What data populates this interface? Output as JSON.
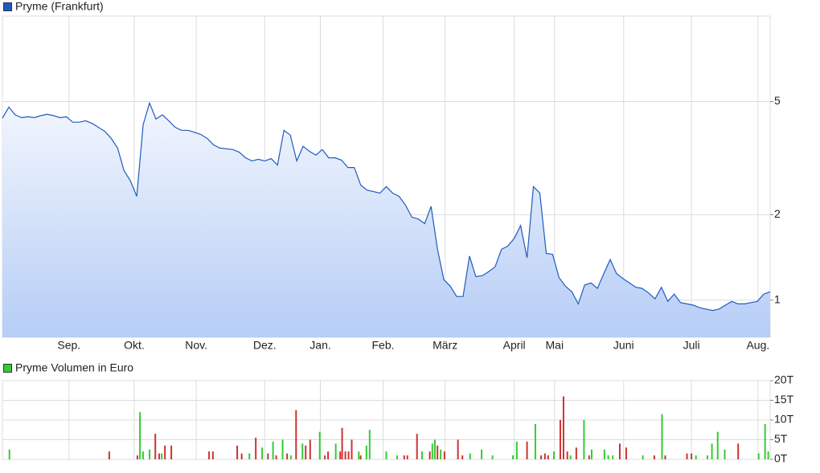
{
  "chart_data": [
    {
      "type": "line",
      "ylog": true,
      "grid": true,
      "series": [
        {
          "name": "Pryme (Frankfurt)",
          "color": "#1f5bbf",
          "values": [
            4.37,
            4.78,
            4.49,
            4.39,
            4.42,
            4.39,
            4.46,
            4.51,
            4.46,
            4.39,
            4.42,
            4.23,
            4.23,
            4.28,
            4.19,
            4.06,
            3.93,
            3.71,
            3.43,
            2.86,
            2.63,
            2.32,
            4.15,
            4.94,
            4.34,
            4.49,
            4.28,
            4.06,
            3.96,
            3.96,
            3.9,
            3.83,
            3.71,
            3.52,
            3.43,
            3.41,
            3.39,
            3.32,
            3.17,
            3.09,
            3.13,
            3.09,
            3.15,
            2.99,
            3.96,
            3.81,
            3.09,
            3.48,
            3.34,
            3.24,
            3.39,
            3.17,
            3.17,
            3.11,
            2.93,
            2.93,
            2.54,
            2.44,
            2.41,
            2.38,
            2.51,
            2.38,
            2.32,
            2.16,
            1.96,
            1.93,
            1.86,
            2.14,
            1.51,
            1.18,
            1.12,
            1.03,
            1.03,
            1.43,
            1.21,
            1.22,
            1.26,
            1.31,
            1.51,
            1.55,
            1.65,
            1.83,
            1.41,
            2.51,
            2.38,
            1.46,
            1.45,
            1.2,
            1.12,
            1.07,
            0.97,
            1.13,
            1.15,
            1.1,
            1.24,
            1.39,
            1.24,
            1.19,
            1.15,
            1.11,
            1.1,
            1.06,
            1.01,
            1.11,
            0.99,
            1.05,
            0.98,
            0.97,
            0.96,
            0.94,
            0.93,
            0.92,
            0.93,
            0.96,
            0.99,
            0.97,
            0.97,
            0.98,
            0.99,
            1.05,
            1.07
          ]
        }
      ],
      "xlim": [
        0,
        120
      ],
      "xticks": [
        {
          "value": 10.4,
          "label": "Sep."
        },
        {
          "value": 20.6,
          "label": "Okt."
        },
        {
          "value": 30.3,
          "label": "Nov."
        },
        {
          "value": 41,
          "label": "Dez."
        },
        {
          "value": 49.7,
          "label": "Jan."
        },
        {
          "value": 59.5,
          "label": "Feb."
        },
        {
          "value": 69.2,
          "label": "März"
        },
        {
          "value": 80,
          "label": "April"
        },
        {
          "value": 86.3,
          "label": "Mai"
        },
        {
          "value": 97.1,
          "label": "Juni"
        },
        {
          "value": 107.7,
          "label": "Juli"
        },
        {
          "value": 118.1,
          "label": "Aug."
        }
      ],
      "ylim": [
        0.74,
        10
      ],
      "yticks": [
        1,
        2,
        5
      ]
    },
    {
      "type": "bar",
      "grid": true,
      "series": [
        {
          "name": "Pryme Volumen in Euro",
          "color": "#33cc33",
          "x": [
            1.1,
            16.7,
            21.1,
            21.5,
            22,
            23,
            23.9,
            24.5,
            24.9,
            25.4,
            26.4,
            32.3,
            32.9,
            36.7,
            37.4,
            38.6,
            39.6,
            40.6,
            41.5,
            42.3,
            42.8,
            43.8,
            44.5,
            45.1,
            45.9,
            46.9,
            47.4,
            48.1,
            49.6,
            50.4,
            50.9,
            52.1,
            52.8,
            53.1,
            53.6,
            54.1,
            54.6,
            55.7,
            56,
            56.9,
            57.4,
            60,
            61.7,
            62.8,
            63.3,
            64.8,
            65.6,
            66.8,
            67.2,
            67.6,
            68,
            68.5,
            69.1,
            71.2,
            71.9,
            73.1,
            74.9,
            76.6,
            79.8,
            80.4,
            82,
            83.3,
            84.2,
            84.8,
            85.3,
            86.2,
            87.2,
            87.7,
            88.3,
            88.8,
            89.7,
            90.9,
            91.7,
            92.1,
            94.1,
            94.7,
            95.4,
            96.5,
            97.5,
            100.1,
            101.9,
            103.1,
            103.6,
            107,
            107.7,
            108.4,
            110.2,
            110.9,
            111.8,
            112.9,
            115,
            118.2,
            119.2,
            119.7
          ],
          "values": [
            2.5,
            2,
            1,
            12,
            2,
            2.5,
            6.5,
            1.5,
            1.5,
            3.5,
            3.5,
            2,
            2,
            3.5,
            1.5,
            1.5,
            5.5,
            3,
            1.5,
            4.5,
            1,
            5,
            1.5,
            1,
            12.5,
            4,
            3.5,
            5,
            7,
            1,
            2,
            4,
            2,
            8,
            2,
            2,
            5,
            2,
            1,
            3.5,
            7.5,
            2,
            1,
            1,
            1,
            6.5,
            2,
            2,
            4,
            5,
            3.5,
            2.5,
            2,
            5,
            1,
            1.5,
            2.5,
            1,
            1,
            4.5,
            4.5,
            9,
            1,
            1.5,
            1,
            2,
            10,
            16,
            2,
            1,
            3,
            10,
            1,
            2.5,
            2.5,
            1,
            1,
            4,
            3,
            1,
            1,
            11.5,
            1,
            1.5,
            1.5,
            1,
            1,
            4,
            7,
            2.5,
            4,
            1.5,
            9,
            2
          ],
          "colors": [
            "#33cc33",
            "#cc3333",
            "#cc3333",
            "#33cc33",
            "#33cc33",
            "#33cc33",
            "#cc3333",
            "#cc3333",
            "#33cc33",
            "#cc3333",
            "#cc3333",
            "#cc3333",
            "#cc3333",
            "#cc3333",
            "#cc3333",
            "#33cc33",
            "#cc3333",
            "#33cc33",
            "#cc3333",
            "#33cc33",
            "#cc3333",
            "#33cc33",
            "#cc3333",
            "#33cc33",
            "#cc3333",
            "#33cc33",
            "#cc3333",
            "#cc3333",
            "#33cc33",
            "#cc3333",
            "#cc3333",
            "#33cc33",
            "#cc3333",
            "#cc3333",
            "#cc3333",
            "#cc3333",
            "#cc3333",
            "#33cc33",
            "#cc3333",
            "#33cc33",
            "#33cc33",
            "#33cc33",
            "#33cc33",
            "#cc3333",
            "#cc3333",
            "#cc3333",
            "#33cc33",
            "#cc3333",
            "#33cc33",
            "#33cc33",
            "#cc3333",
            "#33cc33",
            "#cc3333",
            "#cc3333",
            "#cc3333",
            "#33cc33",
            "#33cc33",
            "#33cc33",
            "#33cc33",
            "#33cc33",
            "#cc3333",
            "#33cc33",
            "#cc3333",
            "#cc3333",
            "#cc3333",
            "#33cc33",
            "#cc3333",
            "#cc3333",
            "#cc3333",
            "#33cc33",
            "#cc3333",
            "#33cc33",
            "#cc3333",
            "#33cc33",
            "#33cc33",
            "#33cc33",
            "#33cc33",
            "#cc3333",
            "#cc3333",
            "#33cc33",
            "#cc3333",
            "#33cc33",
            "#cc3333",
            "#cc3333",
            "#cc3333",
            "#33cc33",
            "#33cc33",
            "#33cc33",
            "#33cc33",
            "#33cc33",
            "#cc3333",
            "#33cc33",
            "#33cc33",
            "#33cc33"
          ]
        }
      ],
      "xlim": [
        0,
        120
      ],
      "xticks": [
        10.4,
        20.6,
        30.3,
        41,
        49.7,
        59.5,
        69.2,
        80,
        86.3,
        97.1,
        107.7,
        118.1
      ],
      "ylim": [
        0,
        20
      ],
      "yticks": [
        {
          "value": 0,
          "label": "0T"
        },
        {
          "value": 5,
          "label": "5T"
        },
        {
          "value": 10,
          "label": "10T"
        },
        {
          "value": 15,
          "label": "15T"
        },
        {
          "value": 20,
          "label": "20T"
        }
      ]
    }
  ]
}
